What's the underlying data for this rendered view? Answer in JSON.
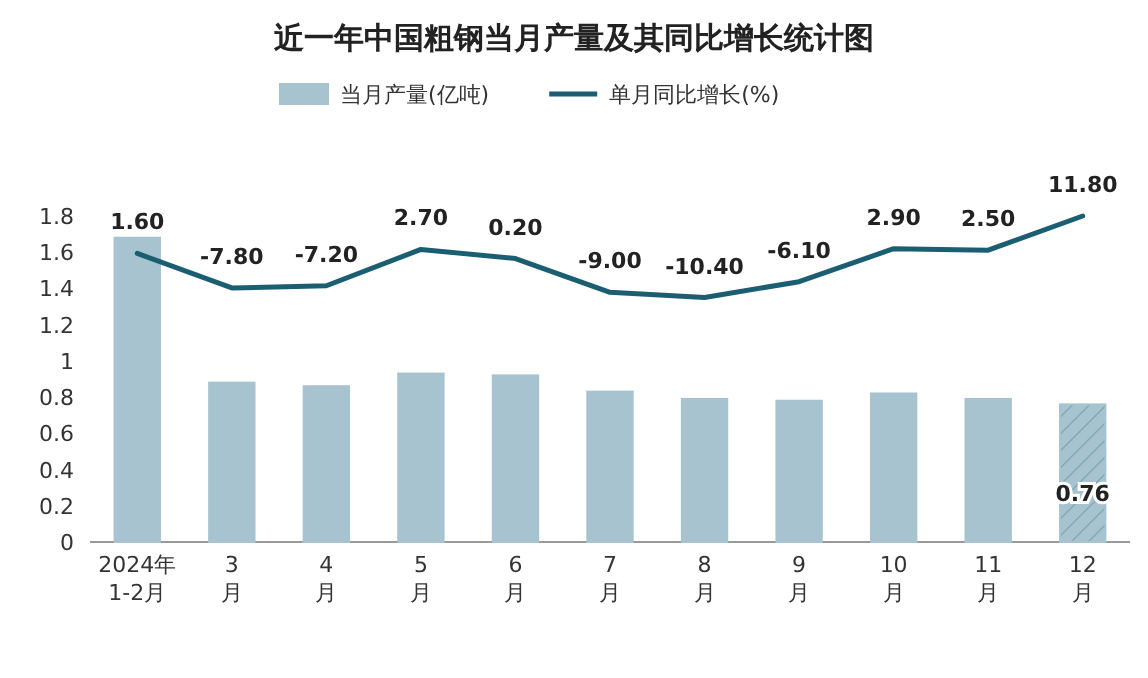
{
  "chart_data": {
    "type": "bar",
    "title": "近一年中国粗钢当月产量及其同比增长统计图",
    "categories": [
      "2024年\n1-2月",
      "3\n月",
      "4\n月",
      "5\n月",
      "6\n月",
      "7\n月",
      "8\n月",
      "9\n月",
      "10\n月",
      "11\n月",
      "12\n月"
    ],
    "series": [
      {
        "name": "当月产量(亿吨)",
        "color": "#a7c3cf",
        "values": [
          1.68,
          0.88,
          0.86,
          0.93,
          0.92,
          0.83,
          0.79,
          0.78,
          0.82,
          0.79,
          0.76
        ],
        "value_labels": [
          null,
          null,
          null,
          null,
          null,
          null,
          null,
          null,
          null,
          null,
          "0.76"
        ]
      },
      {
        "name": "单月同比增长(%)",
        "type": "line",
        "axis": "y2",
        "color": "#1b5e72",
        "values": [
          1.6,
          -7.8,
          -7.2,
          2.7,
          0.2,
          -9.0,
          -10.4,
          -6.1,
          2.9,
          2.5,
          11.8
        ],
        "value_labels": [
          "1.60",
          "-7.80",
          "-7.20",
          "2.70",
          "0.20",
          "-9.00",
          "-10.40",
          "-6.10",
          "2.90",
          "2.50",
          "11.80"
        ]
      }
    ],
    "ylim": [
      0,
      1.8
    ],
    "yticks": [
      0,
      0.2,
      0.4,
      0.6,
      0.8,
      1,
      1.2,
      1.4,
      1.6,
      1.8
    ],
    "tick_labels": "xy",
    "grid": false,
    "legend": "top"
  }
}
